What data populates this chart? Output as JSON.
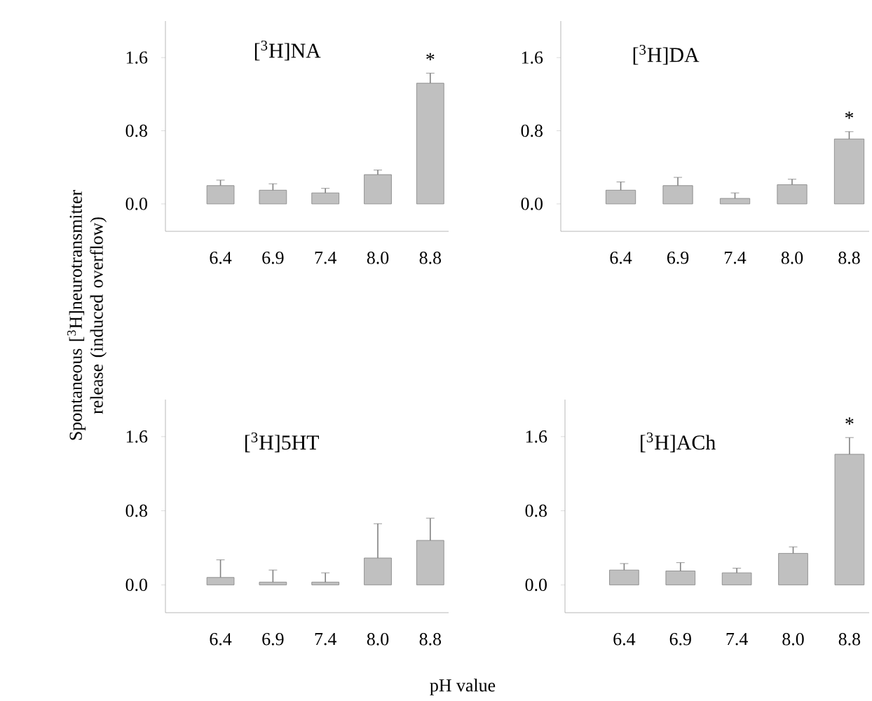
{
  "chart_data": [
    {
      "type": "bar",
      "title": "[$^{3}$H]NA",
      "ylabel": "Spontaneous [$^{3}$H]neurotransmitter release (induced overflow)",
      "categories": [
        "6.4",
        "6.9",
        "7.4",
        "8.0",
        "8.8"
      ],
      "values": [
        0.2,
        0.15,
        0.12,
        0.32,
        1.32
      ],
      "errors": [
        0.06,
        0.07,
        0.05,
        0.05,
        0.11
      ],
      "color": "#c0c0c0",
      "ylim": [
        -0.3,
        2.0
      ],
      "yticks": [
        {
          "value": 0,
          "label": "0.0"
        },
        {
          "value": 0.8,
          "label": "0.8"
        },
        {
          "value": 1.6,
          "label": "1.6"
        }
      ],
      "annotations": [
        "*"
      ]
    },
    {
      "type": "bar",
      "title": "[$^{3}$H]DA",
      "categories": [
        "6.4",
        "6.9",
        "7.4",
        "8.0",
        "8.8"
      ],
      "values": [
        0.15,
        0.2,
        0.06,
        0.21,
        0.71
      ],
      "errors": [
        0.09,
        0.09,
        0.06,
        0.06,
        0.08
      ],
      "color": "#c0c0c0",
      "ylim": [
        -0.3,
        2.0
      ],
      "yticks": [
        {
          "value": 0,
          "label": "0.0"
        },
        {
          "value": 0.8,
          "label": "0.8"
        },
        {
          "value": 1.6,
          "label": "1.6"
        }
      ],
      "annotations": [
        "*"
      ]
    },
    {
      "type": "bar",
      "title": "[$^{3}$H]5HT",
      "categories": [
        "6.4",
        "6.9",
        "7.4",
        "8.0",
        "8.8"
      ],
      "values": [
        0.08,
        0.03,
        0.03,
        0.29,
        0.48
      ],
      "errors": [
        0.19,
        0.13,
        0.1,
        0.37,
        0.24
      ],
      "color": "#c0c0c0",
      "ylim": [
        -0.3,
        2.0
      ],
      "yticks": [
        {
          "value": 0,
          "label": "0.0"
        },
        {
          "value": 0.8,
          "label": "0.8"
        },
        {
          "value": 1.6,
          "label": "1.6"
        }
      ]
    },
    {
      "type": "bar",
      "title": "[$^{3}$H]ACh",
      "xlabel": "pH value",
      "categories": [
        "6.4",
        "6.9",
        "7.4",
        "8.0",
        "8.8"
      ],
      "values": [
        0.16,
        0.15,
        0.13,
        0.34,
        1.41
      ],
      "errors": [
        0.07,
        0.09,
        0.05,
        0.07,
        0.18
      ],
      "color": "#c0c0c0",
      "ylim": [
        -0.3,
        2.0
      ],
      "yticks": [
        {
          "value": 0,
          "label": "0.0"
        },
        {
          "value": 0.8,
          "label": "0.8"
        },
        {
          "value": 1.6,
          "label": "1.6"
        }
      ],
      "annotations": [
        "*"
      ]
    }
  ]
}
